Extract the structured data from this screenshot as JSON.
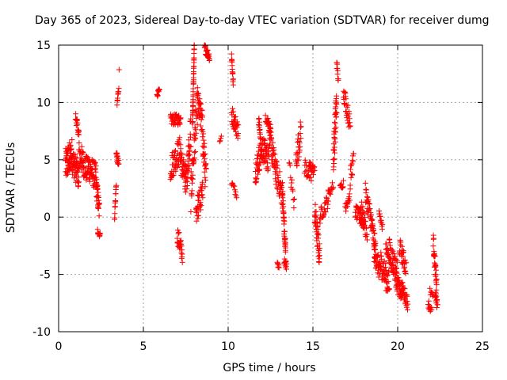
{
  "chart_data": {
    "type": "scatter",
    "title": "Day 365 of 2023, Sidereal Day-to-day VTEC variation (SDTVAR) for receiver dumg",
    "xlabel": "GPS time / hours",
    "ylabel": "SDTVAR / TECUs",
    "xlim": [
      0,
      25
    ],
    "ylim": [
      -10,
      15
    ],
    "xticks": [
      0,
      5,
      10,
      15,
      20,
      25
    ],
    "yticks": [
      -10,
      -5,
      0,
      5,
      10,
      15
    ],
    "grid": true,
    "marker": "+",
    "color": "#ff0000",
    "series": [
      {
        "name": "SDTVAR",
        "segments": [
          {
            "t0": 0.4,
            "t1": 0.8,
            "y0": 4.5,
            "y1": 5.5,
            "amp": 1.8,
            "n": 60
          },
          {
            "t0": 0.8,
            "t1": 1.2,
            "y0": 5.0,
            "y1": 3.5,
            "amp": 1.5,
            "n": 50
          },
          {
            "t0": 1.0,
            "t1": 1.2,
            "y0": 8.8,
            "y1": 7.2,
            "amp": 0.6,
            "n": 20
          },
          {
            "t0": 1.2,
            "t1": 1.7,
            "y0": 5.5,
            "y1": 4.0,
            "amp": 1.5,
            "n": 50
          },
          {
            "t0": 1.7,
            "t1": 2.2,
            "y0": 4.5,
            "y1": 3.5,
            "amp": 1.5,
            "n": 50
          },
          {
            "t0": 2.2,
            "t1": 2.4,
            "y0": 3.0,
            "y1": 0.5,
            "amp": 1.2,
            "n": 30
          },
          {
            "t0": 2.3,
            "t1": 2.45,
            "y0": -1.2,
            "y1": -1.6,
            "amp": 0.3,
            "n": 12
          },
          {
            "t0": 3.3,
            "t1": 3.4,
            "y0": 0.0,
            "y1": 3.0,
            "amp": 0.4,
            "n": 14
          },
          {
            "t0": 3.4,
            "t1": 3.55,
            "y0": 5.5,
            "y1": 4.5,
            "amp": 0.5,
            "n": 16
          },
          {
            "t0": 3.45,
            "t1": 3.55,
            "y0": 9.8,
            "y1": 11.5,
            "amp": 0.5,
            "n": 10
          },
          {
            "t0": 3.55,
            "t1": 3.58,
            "y0": 12.8,
            "y1": 12.8,
            "amp": 0.1,
            "n": 1
          },
          {
            "t0": 5.8,
            "t1": 5.95,
            "y0": 10.7,
            "y1": 11.0,
            "amp": 0.3,
            "n": 10
          },
          {
            "t0": 6.6,
            "t1": 7.2,
            "y0": 8.5,
            "y1": 8.5,
            "amp": 0.6,
            "n": 40
          },
          {
            "t0": 6.6,
            "t1": 7.2,
            "y0": 4.3,
            "y1": 6.0,
            "amp": 1.5,
            "n": 50
          },
          {
            "t0": 7.2,
            "t1": 7.5,
            "y0": 5.0,
            "y1": 3.0,
            "amp": 1.5,
            "n": 35
          },
          {
            "t0": 7.0,
            "t1": 7.3,
            "y0": -1.5,
            "y1": -3.2,
            "amp": 1.0,
            "n": 30
          },
          {
            "t0": 7.5,
            "t1": 7.8,
            "y0": 3.0,
            "y1": 7.5,
            "amp": 2.0,
            "n": 35
          },
          {
            "t0": 7.9,
            "t1": 8.0,
            "y0": 8.0,
            "y1": 14.8,
            "amp": 0.6,
            "n": 40
          },
          {
            "t0": 7.8,
            "t1": 8.2,
            "y0": 2.0,
            "y1": 10.0,
            "amp": 2.0,
            "n": 45
          },
          {
            "t0": 8.2,
            "t1": 8.5,
            "y0": 10.0,
            "y1": 8.0,
            "amp": 1.5,
            "n": 35
          },
          {
            "t0": 8.1,
            "t1": 8.5,
            "y0": 0.5,
            "y1": 2.0,
            "amp": 1.5,
            "n": 35
          },
          {
            "t0": 8.5,
            "t1": 8.7,
            "y0": 7.0,
            "y1": 3.0,
            "amp": 2.0,
            "n": 25
          },
          {
            "t0": 8.6,
            "t1": 8.9,
            "y0": 14.8,
            "y1": 14.0,
            "amp": 0.5,
            "n": 25
          },
          {
            "t0": 9.5,
            "t1": 9.6,
            "y0": 6.6,
            "y1": 7.0,
            "amp": 0.2,
            "n": 4
          },
          {
            "t0": 10.2,
            "t1": 10.3,
            "y0": 14.2,
            "y1": 11.5,
            "amp": 0.5,
            "n": 15
          },
          {
            "t0": 10.2,
            "t1": 10.6,
            "y0": 9.0,
            "y1": 7.5,
            "amp": 1.0,
            "n": 30
          },
          {
            "t0": 10.2,
            "t1": 10.5,
            "y0": 3.0,
            "y1": 2.0,
            "amp": 0.4,
            "n": 12
          },
          {
            "t0": 11.6,
            "t1": 12.0,
            "y0": 4.0,
            "y1": 6.0,
            "amp": 1.5,
            "n": 40
          },
          {
            "t0": 11.8,
            "t1": 11.9,
            "y0": 8.5,
            "y1": 7.0,
            "amp": 0.6,
            "n": 12
          },
          {
            "t0": 12.0,
            "t1": 12.4,
            "y0": 6.0,
            "y1": 5.0,
            "amp": 1.5,
            "n": 40
          },
          {
            "t0": 12.2,
            "t1": 12.5,
            "y0": 9.0,
            "y1": 7.5,
            "amp": 0.8,
            "n": 20
          },
          {
            "t0": 12.4,
            "t1": 12.8,
            "y0": 7.5,
            "y1": 4.0,
            "amp": 1.5,
            "n": 40
          },
          {
            "t0": 12.8,
            "t1": 13.2,
            "y0": 4.0,
            "y1": 2.0,
            "amp": 1.5,
            "n": 35
          },
          {
            "t0": 12.9,
            "t1": 13.0,
            "y0": -4.0,
            "y1": -4.4,
            "amp": 0.3,
            "n": 8
          },
          {
            "t0": 13.2,
            "t1": 13.4,
            "y0": 2.0,
            "y1": -3.5,
            "amp": 1.2,
            "n": 40
          },
          {
            "t0": 13.3,
            "t1": 13.45,
            "y0": -3.8,
            "y1": -4.3,
            "amp": 0.4,
            "n": 10
          },
          {
            "t0": 13.6,
            "t1": 13.9,
            "y0": 4.5,
            "y1": 1.0,
            "amp": 1.0,
            "n": 12
          },
          {
            "t0": 14.0,
            "t1": 14.3,
            "y0": 5.0,
            "y1": 7.5,
            "amp": 1.5,
            "n": 25
          },
          {
            "t0": 14.5,
            "t1": 14.9,
            "y0": 4.5,
            "y1": 3.5,
            "amp": 1.0,
            "n": 20
          },
          {
            "t0": 14.8,
            "t1": 15.1,
            "y0": 4.5,
            "y1": 4.0,
            "amp": 0.6,
            "n": 20
          },
          {
            "t0": 15.1,
            "t1": 15.4,
            "y0": 0.5,
            "y1": -3.5,
            "amp": 1.5,
            "n": 40
          },
          {
            "t0": 15.4,
            "t1": 15.9,
            "y0": 0.0,
            "y1": 1.5,
            "amp": 0.8,
            "n": 25
          },
          {
            "t0": 15.9,
            "t1": 16.2,
            "y0": 2.0,
            "y1": 2.8,
            "amp": 0.5,
            "n": 12
          },
          {
            "t0": 16.2,
            "t1": 16.4,
            "y0": 5.0,
            "y1": 10.0,
            "amp": 2.0,
            "n": 40
          },
          {
            "t0": 16.4,
            "t1": 16.5,
            "y0": 13.5,
            "y1": 12.0,
            "amp": 0.5,
            "n": 10
          },
          {
            "t0": 16.6,
            "t1": 16.8,
            "y0": 2.5,
            "y1": 3.0,
            "amp": 0.4,
            "n": 10
          },
          {
            "t0": 16.8,
            "t1": 17.2,
            "y0": 11.0,
            "y1": 8.0,
            "amp": 1.0,
            "n": 30
          },
          {
            "t0": 16.9,
            "t1": 17.2,
            "y0": 1.0,
            "y1": 2.0,
            "amp": 0.8,
            "n": 15
          },
          {
            "t0": 17.2,
            "t1": 17.4,
            "y0": 3.5,
            "y1": 5.0,
            "amp": 1.0,
            "n": 14
          },
          {
            "t0": 17.5,
            "t1": 18.0,
            "y0": 0.5,
            "y1": -0.5,
            "amp": 0.8,
            "n": 35
          },
          {
            "t0": 17.8,
            "t1": 18.2,
            "y0": 1.0,
            "y1": -1.5,
            "amp": 1.0,
            "n": 30
          },
          {
            "t0": 18.1,
            "t1": 18.4,
            "y0": 2.0,
            "y1": 0.0,
            "amp": 1.2,
            "n": 25
          },
          {
            "t0": 18.4,
            "t1": 18.7,
            "y0": 0.0,
            "y1": -3.0,
            "amp": 1.2,
            "n": 30
          },
          {
            "t0": 18.6,
            "t1": 19.0,
            "y0": -3.0,
            "y1": -5.0,
            "amp": 1.2,
            "n": 35
          },
          {
            "t0": 18.9,
            "t1": 19.1,
            "y0": 0.5,
            "y1": -1.0,
            "amp": 0.6,
            "n": 12
          },
          {
            "t0": 19.0,
            "t1": 19.5,
            "y0": -4.0,
            "y1": -6.0,
            "amp": 1.5,
            "n": 45
          },
          {
            "t0": 19.3,
            "t1": 19.5,
            "y0": -2.5,
            "y1": -3.5,
            "amp": 0.6,
            "n": 15
          },
          {
            "t0": 19.5,
            "t1": 20.0,
            "y0": -3.0,
            "y1": -5.0,
            "amp": 1.5,
            "n": 50
          },
          {
            "t0": 19.9,
            "t1": 20.3,
            "y0": -5.5,
            "y1": -7.0,
            "amp": 1.0,
            "n": 35
          },
          {
            "t0": 20.1,
            "t1": 20.5,
            "y0": -2.5,
            "y1": -4.5,
            "amp": 1.0,
            "n": 30
          },
          {
            "t0": 20.2,
            "t1": 20.6,
            "y0": -6.0,
            "y1": -7.5,
            "amp": 0.8,
            "n": 30
          },
          {
            "t0": 21.8,
            "t1": 22.0,
            "y0": -7.5,
            "y1": -8.2,
            "amp": 0.5,
            "n": 12
          },
          {
            "t0": 21.9,
            "t1": 22.1,
            "y0": -6.5,
            "y1": -7.0,
            "amp": 0.4,
            "n": 8
          },
          {
            "t0": 22.1,
            "t1": 22.3,
            "y0": -2.2,
            "y1": -6.0,
            "amp": 1.0,
            "n": 30
          },
          {
            "t0": 22.2,
            "t1": 22.35,
            "y0": -6.5,
            "y1": -7.8,
            "amp": 0.6,
            "n": 15
          }
        ]
      }
    ]
  }
}
